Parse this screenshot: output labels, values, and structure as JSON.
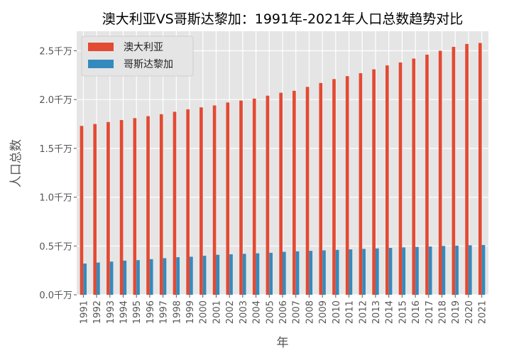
{
  "chart_data": {
    "type": "bar",
    "title": "澳大利亚VS哥斯达黎加：1991年-2021年人口总数趋势对比",
    "xlabel": "年",
    "ylabel": "人口总数",
    "ylim": [
      0,
      2.7
    ],
    "yticks": [
      0,
      0.5,
      1.0,
      1.5,
      2.0,
      2.5
    ],
    "ytick_labels": [
      "0.0千万",
      "0.5千万",
      "1.0千万",
      "1.5千万",
      "2.0千万",
      "2.5千万"
    ],
    "grid": true,
    "legend_position": "top-left",
    "categories": [
      "1991",
      "1992",
      "1993",
      "1994",
      "1995",
      "1996",
      "1997",
      "1998",
      "1999",
      "2000",
      "2001",
      "2002",
      "2003",
      "2004",
      "2005",
      "2006",
      "2007",
      "2008",
      "2009",
      "2010",
      "2011",
      "2012",
      "2013",
      "2014",
      "2015",
      "2016",
      "2017",
      "2018",
      "2019",
      "2020",
      "2021"
    ],
    "series": [
      {
        "name": "澳大利亚",
        "color": "#e24a33",
        "values": [
          1.73,
          1.75,
          1.77,
          1.79,
          1.81,
          1.83,
          1.85,
          1.875,
          1.9,
          1.92,
          1.94,
          1.97,
          1.99,
          2.01,
          2.04,
          2.07,
          2.09,
          2.13,
          2.17,
          2.21,
          2.24,
          2.27,
          2.31,
          2.35,
          2.38,
          2.42,
          2.46,
          2.5,
          2.54,
          2.57,
          2.58
        ]
      },
      {
        "name": "哥斯达黎加",
        "color": "#348abd",
        "values": [
          0.32,
          0.33,
          0.34,
          0.35,
          0.355,
          0.365,
          0.375,
          0.385,
          0.39,
          0.4,
          0.41,
          0.415,
          0.42,
          0.425,
          0.43,
          0.44,
          0.445,
          0.45,
          0.455,
          0.46,
          0.465,
          0.47,
          0.475,
          0.48,
          0.485,
          0.49,
          0.495,
          0.5,
          0.503,
          0.507,
          0.51
        ]
      }
    ]
  }
}
